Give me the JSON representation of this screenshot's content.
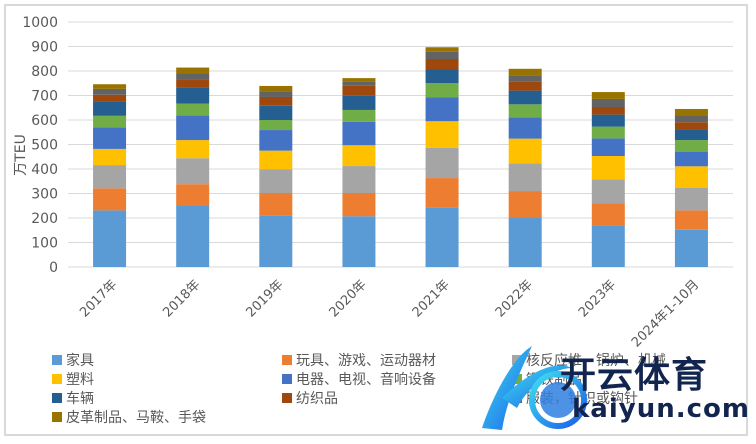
{
  "chart_data": {
    "type": "bar",
    "stacked": true,
    "title": "",
    "xlabel": "",
    "ylabel": "万TEU",
    "ylim": [
      0,
      1000
    ],
    "yticks": [
      0,
      100,
      200,
      300,
      400,
      500,
      600,
      700,
      800,
      900,
      1000
    ],
    "grid": true,
    "legend_position": "bottom",
    "categories": [
      "2017年",
      "2018年",
      "2019年",
      "2020年",
      "2021年",
      "2022年",
      "2023年",
      "2024年1-10月"
    ],
    "series": [
      {
        "name": "家具",
        "color": "#5b9bd5",
        "values": [
          231,
          249,
          211,
          207,
          244,
          200,
          169,
          152
        ]
      },
      {
        "name": "玩具、游戏、运动器材",
        "color": "#ed7d31",
        "values": [
          90,
          89,
          91,
          95,
          119,
          110,
          90,
          79
        ]
      },
      {
        "name": "核反应堆、锅炉、机械",
        "color": "#a5a5a5",
        "values": [
          95,
          106,
          97,
          110,
          124,
          113,
          99,
          93
        ]
      },
      {
        "name": "塑料",
        "color": "#ffc000",
        "values": [
          66,
          74,
          76,
          85,
          108,
          101,
          95,
          87
        ]
      },
      {
        "name": "电器、电视、音响设备",
        "color": "#4472c4",
        "values": [
          88,
          100,
          84,
          96,
          97,
          87,
          72,
          60
        ]
      },
      {
        "name": "钢铁制品",
        "color": "#70ad47",
        "values": [
          47,
          49,
          41,
          48,
          59,
          53,
          48,
          47
        ]
      },
      {
        "name": "车辆",
        "color": "#255e91",
        "values": [
          59,
          64,
          58,
          58,
          57,
          56,
          49,
          43
        ]
      },
      {
        "name": "纺织品",
        "color": "#9e480e",
        "values": [
          27,
          34,
          36,
          41,
          41,
          38,
          31,
          30
        ]
      },
      {
        "name": "服装，针织或钩针",
        "color": "#636363",
        "values": [
          24,
          25,
          22,
          18,
          29,
          25,
          33,
          29
        ]
      },
      {
        "name": "皮革制品、马鞍、手袋",
        "color": "#997300",
        "values": [
          19,
          24,
          23,
          13,
          19,
          26,
          28,
          25
        ]
      }
    ],
    "totals": [
      746,
      814,
      739,
      771,
      897,
      809,
      714,
      645
    ]
  },
  "legend": {
    "items": [
      {
        "label": "家具",
        "color": "#5b9bd5"
      },
      {
        "label": "玩具、游戏、运动器材",
        "color": "#ed7d31"
      },
      {
        "label": "核反应堆、锅炉、机械",
        "color": "#a5a5a5"
      },
      {
        "label": "塑料",
        "color": "#ffc000"
      },
      {
        "label": "电器、电视、音响设备",
        "color": "#4472c4"
      },
      {
        "label": "钢铁制品",
        "color": "#70ad47"
      },
      {
        "label": "车辆",
        "color": "#255e91"
      },
      {
        "label": "纺织品",
        "color": "#9e480e"
      },
      {
        "label": "服装，针织或钩针",
        "color": "#636363"
      },
      {
        "label": "皮革制品、马鞍、手袋",
        "color": "#997300"
      }
    ]
  },
  "watermark": {
    "cn": "开云体育",
    "en": "kaiyun.com"
  }
}
